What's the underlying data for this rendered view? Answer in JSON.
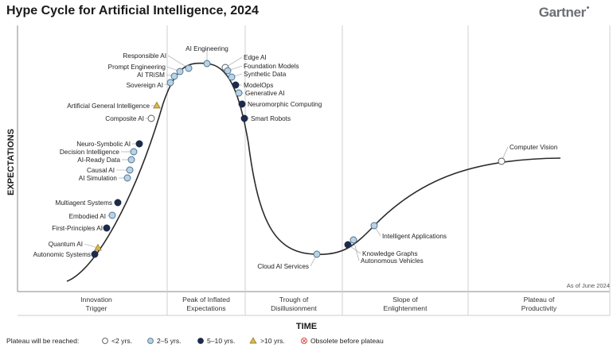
{
  "header": {
    "title": "Hype Cycle for Artificial Intelligence, 2024",
    "brand": "Gartner"
  },
  "axes": {
    "y_label": "EXPECTATIONS",
    "x_label": "TIME"
  },
  "as_of": "As of June 2024",
  "phases": [
    [
      "Innovation",
      "Trigger"
    ],
    [
      "Peak of Inflated",
      "Expectations"
    ],
    [
      "Trough of",
      "Disillusionment"
    ],
    [
      "Slope of",
      "Enlightenment"
    ],
    [
      "Plateau of",
      "Productivity"
    ]
  ],
  "legend": {
    "title": "Plateau will be reached:",
    "items": [
      {
        "label": "<2 yrs.",
        "marker": "open"
      },
      {
        "label": "2–5 yrs.",
        "marker": "light"
      },
      {
        "label": "5–10 yrs.",
        "marker": "dark"
      },
      {
        "label": ">10 yrs.",
        "marker": "triangle"
      },
      {
        "label": "Obsolete before plateau",
        "marker": "x"
      }
    ]
  },
  "colors": {
    "open": "#ffffff",
    "light": "#b8d3e6",
    "dark": "#1c2b4a",
    "triangle": "#d9b84a",
    "obsolete": "#d9534f",
    "curve": "#2b2b2b",
    "grid": "#cfcfcf"
  },
  "technologies": [
    {
      "name": "Autonomic Systems",
      "category": "dark"
    },
    {
      "name": "Quantum AI",
      "category": "triangle"
    },
    {
      "name": "First-Principles AI",
      "category": "dark"
    },
    {
      "name": "Embodied AI",
      "category": "light"
    },
    {
      "name": "Multiagent Systems",
      "category": "dark"
    },
    {
      "name": "AI Simulation",
      "category": "light"
    },
    {
      "name": "Causal AI",
      "category": "light"
    },
    {
      "name": "AI-Ready Data",
      "category": "light"
    },
    {
      "name": "Decision Intelligence",
      "category": "light"
    },
    {
      "name": "Neuro-Symbolic AI",
      "category": "dark"
    },
    {
      "name": "Composite AI",
      "category": "open"
    },
    {
      "name": "Artificial General Intelligence",
      "category": "triangle"
    },
    {
      "name": "Sovereign AI",
      "category": "light"
    },
    {
      "name": "AI TRiSM",
      "category": "light"
    },
    {
      "name": "Prompt Engineering",
      "category": "light"
    },
    {
      "name": "Responsible AI",
      "category": "light"
    },
    {
      "name": "AI Engineering",
      "category": "light"
    },
    {
      "name": "Edge AI",
      "category": "open"
    },
    {
      "name": "Foundation Models",
      "category": "light"
    },
    {
      "name": "Synthetic Data",
      "category": "light"
    },
    {
      "name": "ModelOps",
      "category": "dark"
    },
    {
      "name": "Generative AI",
      "category": "light"
    },
    {
      "name": "Neuromorphic Computing",
      "category": "dark"
    },
    {
      "name": "Smart Robots",
      "category": "dark"
    },
    {
      "name": "Cloud AI Services",
      "category": "light"
    },
    {
      "name": "Knowledge Graphs",
      "category": "dark"
    },
    {
      "name": "Autonomous Vehicles",
      "category": "light"
    },
    {
      "name": "Intelligent Applications",
      "category": "light"
    },
    {
      "name": "Computer Vision",
      "category": "open"
    }
  ]
}
